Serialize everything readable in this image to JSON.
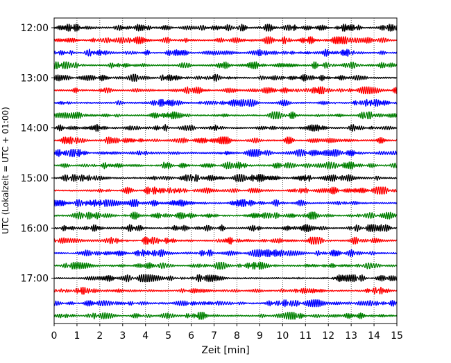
{
  "chart_data": {
    "type": "line",
    "title": "",
    "xlabel": "Zeit  [min]",
    "ylabel": "UTC (Lokalzeit = UTC + 01:00)",
    "xlim": [
      0,
      15
    ],
    "x_ticks": [
      0,
      1,
      2,
      3,
      4,
      5,
      6,
      7,
      8,
      9,
      10,
      11,
      12,
      13,
      14,
      15
    ],
    "y_ticks": [
      {
        "label": "12:00",
        "row": 0
      },
      {
        "label": "13:00",
        "row": 4
      },
      {
        "label": "14:00",
        "row": 8
      },
      {
        "label": "15:00",
        "row": 12
      },
      {
        "label": "16:00",
        "row": 16
      },
      {
        "label": "17:00",
        "row": 20
      }
    ],
    "trace_count": 24,
    "trace_interval_min": 15,
    "start_time": "12:00",
    "color_cycle": [
      "#000000",
      "#ff0000",
      "#0000ff",
      "#008000"
    ],
    "grid": {
      "x": true,
      "y": false,
      "style": "dotted"
    },
    "legend": "none"
  }
}
